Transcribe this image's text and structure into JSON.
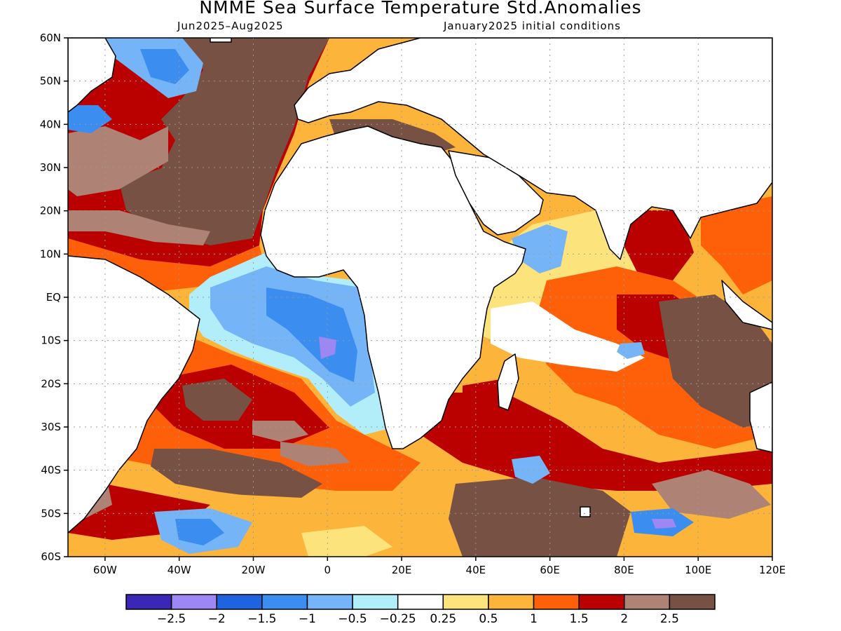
{
  "title": "NMME Sea Surface Temperature Std.Anomalies",
  "subtitle_left": "Jun2025–Aug2025",
  "subtitle_right": "January2025 initial conditions",
  "lat_labels": [
    "60N",
    "50N",
    "40N",
    "30N",
    "20N",
    "10N",
    "EQ",
    "10S",
    "20S",
    "30S",
    "40S",
    "50S",
    "60S"
  ],
  "lon_labels": [
    "60W",
    "40W",
    "20W",
    "0",
    "20E",
    "40E",
    "60E",
    "80E",
    "100E",
    "120E"
  ],
  "colorbar": {
    "colors": [
      "#3b27b6",
      "#9d87f3",
      "#1f63df",
      "#3b8ef0",
      "#74b4f7",
      "#b2eef9",
      "#ffffff",
      "#fde37b",
      "#fdb43a",
      "#fd6008",
      "#bb0000",
      "#ae8275",
      "#775144"
    ],
    "labels": [
      "−2.5",
      "−2",
      "−1.5",
      "−1",
      "−0.5",
      "−0.25",
      "0.25",
      "0.5",
      "1",
      "1.5",
      "2",
      "2.5"
    ]
  },
  "colors": {
    "land": "#ffffff",
    "coast": "#000000",
    "grid": "#9a9a9a"
  }
}
